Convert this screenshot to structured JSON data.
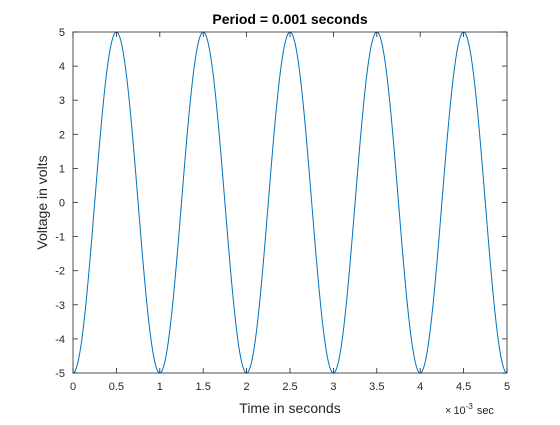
{
  "chart_data": {
    "type": "line",
    "title": "Period = 0.001 seconds",
    "xlabel": "Time in seconds",
    "ylabel": "Voltage in volts",
    "x_exponent_label": {
      "times": "×",
      "base": "10",
      "power": "-3",
      "unit": "sec"
    },
    "xlim": [
      0,
      5
    ],
    "ylim": [
      -5,
      5
    ],
    "x_ticks": [
      "0",
      "0.5",
      "1",
      "1.5",
      "2",
      "2.5",
      "3",
      "3.5",
      "4",
      "4.5",
      "5"
    ],
    "y_ticks": [
      "-5",
      "-4",
      "-3",
      "-2",
      "-1",
      "0",
      "1",
      "2",
      "3",
      "4",
      "5"
    ],
    "grid": false,
    "series": [
      {
        "function": "y = -5*cos(2*pi*t)",
        "t_start": 0,
        "t_end": 5,
        "samples": 501,
        "markers": [
          [
            0.0,
            -5.0
          ],
          [
            0.05,
            -4.76
          ],
          [
            0.1,
            -4.05
          ],
          [
            0.15,
            -2.94
          ],
          [
            0.2,
            -1.55
          ],
          [
            0.25,
            0.0
          ],
          [
            0.3,
            1.55
          ],
          [
            0.35,
            2.94
          ],
          [
            0.4,
            4.05
          ],
          [
            0.45,
            4.76
          ],
          [
            0.5,
            5.0
          ],
          [
            0.55,
            4.76
          ],
          [
            0.6,
            4.05
          ],
          [
            0.65,
            2.94
          ],
          [
            0.7,
            1.55
          ],
          [
            0.75,
            0.0
          ],
          [
            0.8,
            -1.55
          ],
          [
            0.85,
            -2.94
          ],
          [
            0.9,
            -4.05
          ],
          [
            0.95,
            -4.76
          ],
          [
            1.0,
            -5.0
          ]
        ],
        "color": "#0072bd"
      }
    ]
  }
}
